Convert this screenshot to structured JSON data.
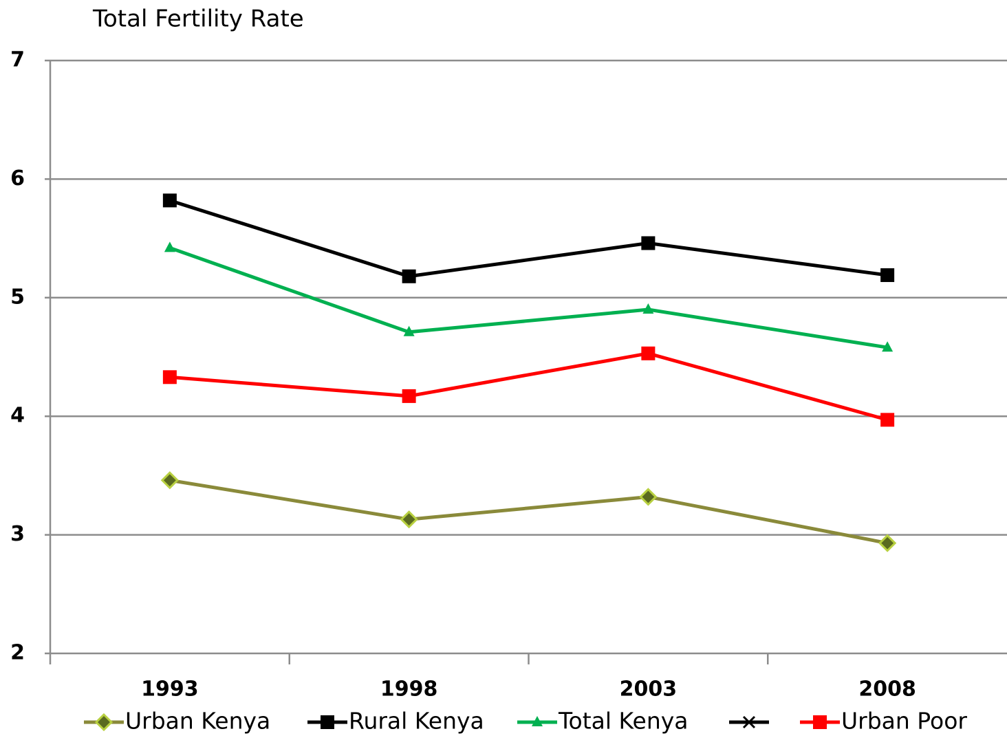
{
  "chart_data": {
    "type": "line",
    "title": "Total Fertility Rate",
    "categories": [
      "1993",
      "1998",
      "2003",
      "2008"
    ],
    "series": [
      {
        "name": "Urban Kenya",
        "color": "#8a8a3a",
        "marker": "diamond",
        "values": [
          3.46,
          3.13,
          3.32,
          2.93
        ]
      },
      {
        "name": "Rural Kenya",
        "color": "#000000",
        "marker": "square",
        "values": [
          5.82,
          5.18,
          5.46,
          5.19
        ]
      },
      {
        "name": "Total Kenya",
        "color": "#00b050",
        "marker": "triangle",
        "values": [
          5.42,
          4.71,
          4.9,
          4.58
        ]
      },
      {
        "name": null,
        "color": "#000000",
        "marker": "x",
        "values": [
          null,
          null,
          null,
          null
        ]
      },
      {
        "name": "Urban Poor",
        "color": "#ff0000",
        "marker": "square",
        "values": [
          4.33,
          4.17,
          4.53,
          3.97
        ]
      }
    ],
    "ylim": [
      2,
      7
    ],
    "yticks": [
      2,
      3,
      4,
      5,
      6,
      7
    ],
    "grid": true
  }
}
